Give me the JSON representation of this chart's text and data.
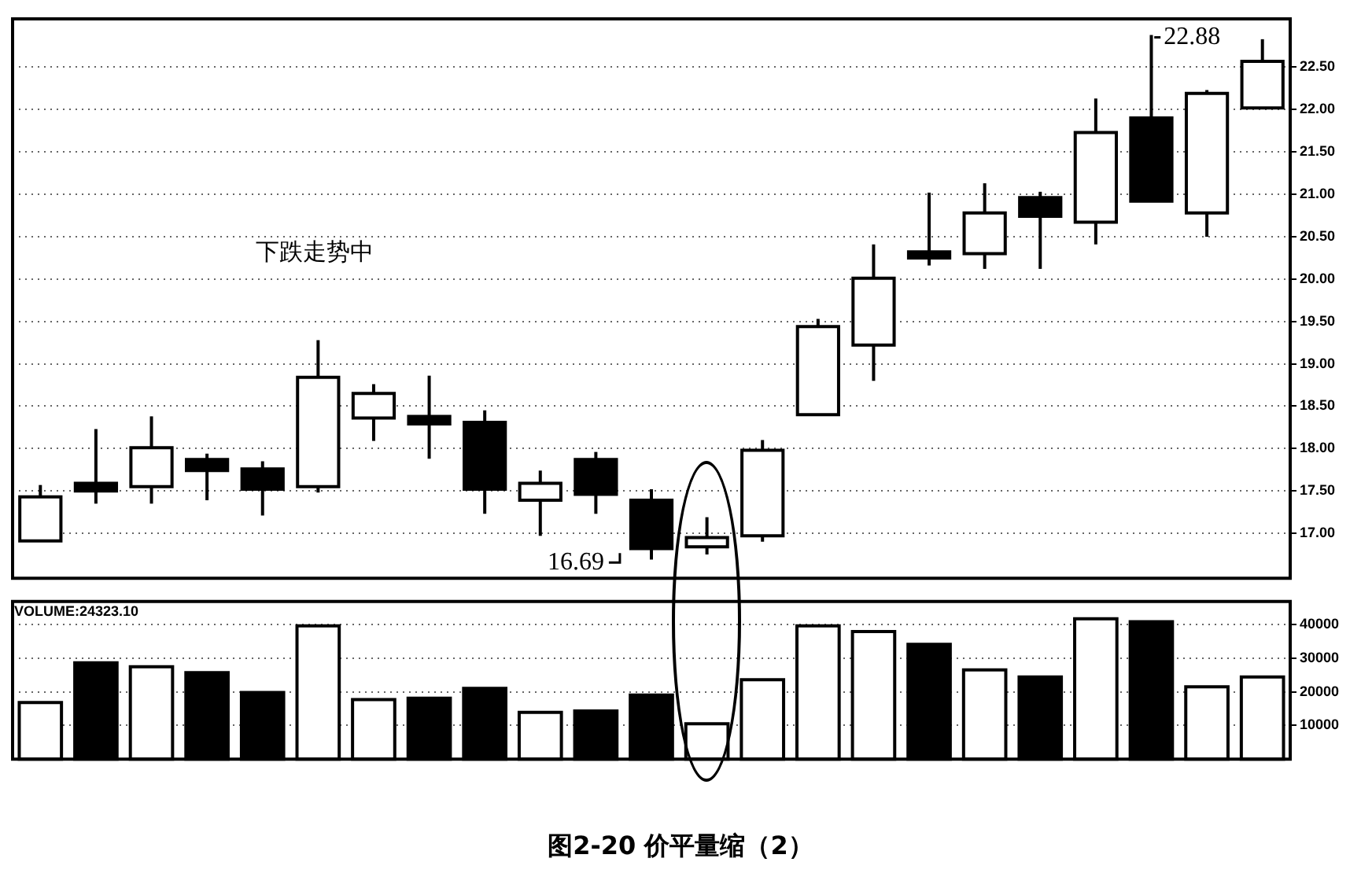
{
  "chart_data": [
    {
      "type": "candlestick",
      "title": "图2-20  价平量缩（2）",
      "categories": [
        null,
        null,
        null,
        null,
        null,
        null,
        null,
        null,
        null,
        null,
        null,
        null,
        null,
        null,
        null,
        null,
        null,
        null,
        null,
        null,
        null,
        null,
        null
      ],
      "ohlc": [
        [
          16.91,
          17.57,
          16.91,
          17.43
        ],
        [
          17.59,
          18.23,
          17.35,
          17.5
        ],
        [
          17.55,
          18.38,
          17.35,
          18.01
        ],
        [
          17.87,
          17.94,
          17.39,
          17.74
        ],
        [
          17.76,
          17.85,
          17.21,
          17.52
        ],
        [
          17.55,
          19.28,
          17.48,
          18.84
        ],
        [
          18.36,
          18.76,
          18.09,
          18.65
        ],
        [
          18.38,
          18.86,
          17.88,
          18.29
        ],
        [
          18.31,
          18.45,
          17.23,
          17.52
        ],
        [
          17.39,
          17.74,
          16.97,
          17.59
        ],
        [
          17.87,
          17.96,
          17.23,
          17.46
        ],
        [
          17.39,
          17.52,
          16.69,
          16.82
        ],
        [
          16.84,
          17.19,
          16.75,
          16.95
        ],
        [
          16.97,
          18.1,
          16.9,
          17.98
        ],
        [
          18.4,
          19.53,
          18.4,
          19.44
        ],
        [
          19.22,
          20.41,
          18.8,
          20.01
        ],
        [
          20.32,
          21.02,
          20.16,
          20.25
        ],
        [
          20.3,
          21.13,
          20.12,
          20.78
        ],
        [
          20.96,
          21.03,
          20.12,
          20.74
        ],
        [
          20.67,
          22.13,
          20.41,
          21.73
        ],
        [
          21.9,
          22.88,
          20.92,
          20.92
        ],
        [
          20.78,
          22.23,
          20.5,
          22.19
        ],
        [
          22.02,
          22.83,
          22.02,
          22.57
        ]
      ],
      "colors": [
        "#ffffff",
        "#000000",
        "#ffffff",
        "#000000",
        "#000000",
        "#ffffff",
        "#ffffff",
        "#000000",
        "#000000",
        "#ffffff",
        "#000000",
        "#000000",
        "#ffffff",
        "#ffffff",
        "#ffffff",
        "#ffffff",
        "#000000",
        "#ffffff",
        "#000000",
        "#ffffff",
        "#000000",
        "#ffffff",
        "#ffffff"
      ],
      "ylim": [
        16.47,
        23.07
      ],
      "yticks": [
        {
          "value": 17,
          "label": "17.00"
        },
        {
          "value": 17.5,
          "label": "17.50"
        },
        {
          "value": 18,
          "label": "18.00"
        },
        {
          "value": 18.5,
          "label": "18.50"
        },
        {
          "value": 19,
          "label": "19.00"
        },
        {
          "value": 19.5,
          "label": "19.50"
        },
        {
          "value": 20,
          "label": "20.00"
        },
        {
          "value": 20.5,
          "label": "20.50"
        },
        {
          "value": 21,
          "label": "21.00"
        },
        {
          "value": 21.5,
          "label": "21.50"
        },
        {
          "value": 22,
          "label": "22.00"
        },
        {
          "value": 22.5,
          "label": "22.50"
        }
      ],
      "tick_labels": "y",
      "grid": "y",
      "legend": false,
      "annotations": [
        "下跌走势中",
        "16.69",
        "22.88"
      ]
    },
    {
      "type": "bar",
      "categories": [
        null,
        null,
        null,
        null,
        null,
        null,
        null,
        null,
        null,
        null,
        null,
        null,
        null,
        null,
        null,
        null,
        null,
        null,
        null,
        null,
        null,
        null,
        null
      ],
      "values": [
        16800,
        28600,
        27400,
        25700,
        19800,
        39600,
        17700,
        18100,
        21000,
        13900,
        14300,
        19000,
        10500,
        23600,
        39600,
        37900,
        34100,
        26500,
        24400,
        41700,
        40800,
        21500,
        24400
      ],
      "colors": [
        "#ffffff",
        "#000000",
        "#ffffff",
        "#000000",
        "#000000",
        "#ffffff",
        "#ffffff",
        "#000000",
        "#000000",
        "#ffffff",
        "#000000",
        "#000000",
        "#ffffff",
        "#ffffff",
        "#ffffff",
        "#ffffff",
        "#000000",
        "#ffffff",
        "#000000",
        "#ffffff",
        "#000000",
        "#ffffff",
        "#ffffff"
      ],
      "ylim": [
        0,
        46800
      ],
      "yticks": [
        10000,
        20000,
        30000,
        40000
      ],
      "tick_labels": "y",
      "grid": "y",
      "legend": false,
      "annotations": [
        "VOLUME:24323.10"
      ]
    }
  ]
}
